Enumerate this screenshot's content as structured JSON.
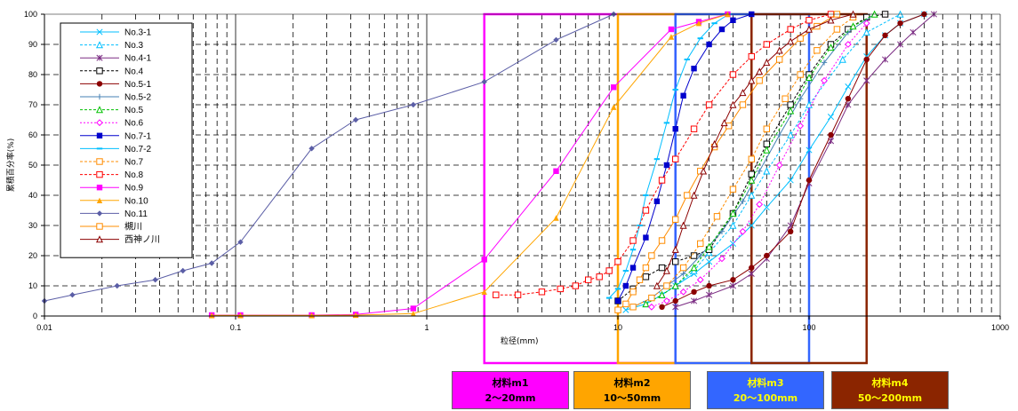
{
  "chart_data": {
    "type": "line",
    "xlabel": "粒径(mm)",
    "ylabel": "累積百分率(%)",
    "xscale": "log",
    "xlim": [
      0.01,
      1000
    ],
    "ylim": [
      0,
      100
    ],
    "x_ticks": [
      "0.01",
      "0.1",
      "1",
      "10",
      "100",
      "1000"
    ],
    "y_ticks": [
      "0",
      "10",
      "20",
      "30",
      "40",
      "50",
      "60",
      "70",
      "80",
      "90",
      "100"
    ],
    "grid": true,
    "legend_position": "top-left",
    "series": [
      {
        "name": "No.3-1",
        "color": "#00BFFF",
        "marker": "x",
        "dash": "",
        "x": [
          11,
          14,
          17,
          20,
          25,
          30,
          40,
          50,
          60,
          80,
          100,
          130,
          160,
          200,
          250,
          300,
          400
        ],
        "y": [
          2,
          4,
          7,
          10,
          14,
          18,
          24,
          30,
          36,
          45,
          55,
          66,
          76,
          86,
          93,
          97,
          100
        ]
      },
      {
        "name": "No.3",
        "color": "#00BFFF",
        "marker": "triangle-open",
        "dash": "3,2",
        "x": [
          14,
          17,
          20,
          25,
          30,
          40,
          50,
          60,
          80,
          100,
          150,
          200,
          300
        ],
        "y": [
          4,
          7,
          10,
          15,
          21,
          30,
          40,
          48,
          60,
          70,
          85,
          94,
          100
        ]
      },
      {
        "name": "No.4-1",
        "color": "#7B2C83",
        "marker": "star",
        "dash": "",
        "x": [
          20,
          25,
          30,
          40,
          50,
          60,
          80,
          100,
          130,
          160,
          200,
          250,
          300,
          350,
          450
        ],
        "y": [
          3,
          5,
          7,
          10,
          14,
          19,
          30,
          44,
          58,
          70,
          78,
          85,
          90,
          94,
          100
        ]
      },
      {
        "name": "No.4",
        "color": "#000000",
        "marker": "square-open",
        "dash": "3,2",
        "x": [
          10,
          12,
          14,
          17,
          20,
          25,
          30,
          40,
          50,
          60,
          80,
          100,
          130,
          160,
          200,
          250
        ],
        "y": [
          5,
          9,
          13,
          16,
          18,
          20,
          22,
          34,
          47,
          57,
          70,
          80,
          90,
          95,
          99,
          100
        ]
      },
      {
        "name": "No.5-1",
        "color": "#8B0000",
        "marker": "circle",
        "dash": "",
        "x": [
          17,
          20,
          25,
          30,
          40,
          50,
          60,
          80,
          100,
          130,
          160,
          200,
          250,
          300,
          400
        ],
        "y": [
          3,
          5,
          8,
          10,
          12,
          16,
          20,
          28,
          45,
          60,
          72,
          85,
          93,
          97,
          100
        ]
      },
      {
        "name": "No.5-2",
        "color": "#4682B4",
        "marker": "plus",
        "dash": "",
        "x": [
          12,
          15,
          18,
          22,
          27,
          35,
          45,
          55,
          70,
          90,
          120,
          160,
          220
        ],
        "y": [
          3,
          6,
          10,
          14,
          20,
          28,
          38,
          48,
          60,
          72,
          84,
          94,
          100
        ]
      },
      {
        "name": "No.5",
        "color": "#00C000",
        "marker": "triangle-open",
        "dash": "3,2",
        "x": [
          14,
          17,
          20,
          25,
          30,
          40,
          50,
          60,
          80,
          100,
          130,
          170,
          220
        ],
        "y": [
          4,
          7,
          10,
          16,
          23,
          34,
          45,
          55,
          68,
          79,
          89,
          96,
          100
        ]
      },
      {
        "name": "No.6",
        "color": "#FF00FF",
        "marker": "diamond-open",
        "dash": "2,2",
        "x": [
          15,
          18,
          22,
          27,
          35,
          45,
          55,
          70,
          90,
          120,
          160,
          200
        ],
        "y": [
          3,
          5,
          8,
          12,
          19,
          28,
          37,
          50,
          63,
          78,
          90,
          97
        ]
      },
      {
        "name": "No.7-1",
        "color": "#0000CD",
        "marker": "square",
        "dash": "",
        "x": [
          10,
          11,
          12,
          14,
          16,
          18,
          20,
          22,
          25,
          30,
          35,
          40,
          50
        ],
        "y": [
          5,
          10,
          16,
          26,
          38,
          50,
          62,
          73,
          82,
          90,
          95,
          98,
          100
        ]
      },
      {
        "name": "No.7-2",
        "color": "#00BFFF",
        "marker": "dash",
        "dash": "",
        "x": [
          9,
          10,
          11,
          12,
          13,
          14,
          16,
          18,
          20,
          23,
          27,
          32,
          38
        ],
        "y": [
          6,
          9,
          15,
          22,
          30,
          40,
          52,
          64,
          75,
          85,
          92,
          97,
          100
        ]
      },
      {
        "name": "No.7",
        "color": "#FF8C00",
        "marker": "square-open",
        "dash": "3,2",
        "x": [
          12,
          15,
          18,
          22,
          27,
          33,
          40,
          50,
          60,
          75,
          90,
          110,
          140,
          170
        ],
        "y": [
          3,
          6,
          10,
          16,
          24,
          33,
          42,
          52,
          62,
          72,
          80,
          88,
          95,
          99
        ]
      },
      {
        "name": "No.8",
        "color": "#FF0000",
        "marker": "square-open",
        "dash": "3,2",
        "x": [
          2.3,
          3,
          4,
          5,
          6,
          7,
          8,
          9,
          10,
          12,
          14,
          17,
          20,
          25,
          30,
          40,
          50,
          60,
          80,
          100,
          130
        ],
        "y": [
          7,
          7,
          8,
          9,
          10,
          12,
          13,
          15,
          18,
          25,
          35,
          45,
          52,
          62,
          70,
          80,
          86,
          90,
          95,
          98,
          100
        ]
      },
      {
        "name": "No.9",
        "color": "#FF00FF",
        "marker": "square",
        "dash": "",
        "x": [
          0.075,
          0.106,
          0.25,
          0.425,
          0.85,
          2,
          4.75,
          9.5,
          19,
          26.5,
          37.5
        ],
        "y": [
          0.3,
          0.3,
          0.3,
          0.5,
          2.5,
          18.7,
          48,
          75.8,
          95,
          97.5,
          100
        ]
      },
      {
        "name": "No.10",
        "color": "#FFA500",
        "marker": "triangle",
        "dash": "",
        "x": [
          0.075,
          0.106,
          0.25,
          0.425,
          0.85,
          2,
          4.75,
          9.5,
          19,
          26.5,
          37.5
        ],
        "y": [
          0.2,
          0.2,
          0.2,
          0.3,
          0.8,
          8,
          32.5,
          69.2,
          92.5,
          97,
          100
        ]
      },
      {
        "name": "No.11",
        "color": "#5B5EA6",
        "marker": "diamond",
        "dash": "",
        "x": [
          0.01,
          0.014,
          0.024,
          0.038,
          0.053,
          0.075,
          0.106,
          0.25,
          0.425,
          0.85,
          2,
          4.75,
          9.5
        ],
        "y": [
          5,
          7,
          10,
          12,
          15,
          17.5,
          24.5,
          55.5,
          65,
          70,
          77.6,
          91.5,
          100
        ]
      },
      {
        "name": "槻川",
        "color": "#FF8C00",
        "marker": "square-open",
        "dash": "",
        "x": [
          10,
          11,
          12,
          13,
          14,
          15,
          17,
          20,
          23,
          27,
          32,
          38,
          45,
          55,
          70,
          90,
          110,
          140
        ],
        "y": [
          2,
          4,
          8,
          12,
          16,
          20,
          25,
          32,
          40,
          48,
          56,
          63,
          70,
          78,
          85,
          92,
          96,
          100
        ]
      },
      {
        "name": "西神ノ川",
        "color": "#8B0000",
        "marker": "triangle-open",
        "dash": "",
        "x": [
          16,
          18,
          20,
          22,
          25,
          28,
          32,
          36,
          40,
          45,
          50,
          55,
          60,
          70,
          80,
          100,
          130,
          170
        ],
        "y": [
          10,
          15,
          22,
          30,
          40,
          48,
          57,
          64,
          70,
          74,
          78,
          81,
          84,
          88,
          91,
          95,
          98,
          100
        ]
      }
    ],
    "material_ranges": [
      {
        "name": "材料m1",
        "range": "2～20mm",
        "xmin": 2,
        "xmax": 20,
        "color": "#FF00FF",
        "text_color": "#000000"
      },
      {
        "name": "材料m2",
        "range": "10～50mm",
        "xmin": 10,
        "xmax": 50,
        "color": "#FFA500",
        "text_color": "#000000"
      },
      {
        "name": "材料m3",
        "range": "20～100mm",
        "xmin": 20,
        "xmax": 100,
        "color": "#3366FF",
        "text_color": "#FFFF00"
      },
      {
        "name": "材料m4",
        "range": "50～200mm",
        "xmin": 50,
        "xmax": 200,
        "color": "#8B2500",
        "text_color": "#FFFF00"
      }
    ]
  }
}
